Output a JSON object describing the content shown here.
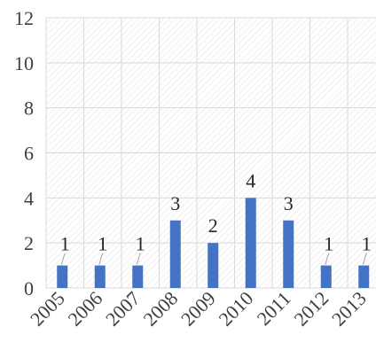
{
  "chart_data": {
    "type": "bar",
    "title": "",
    "xlabel": "",
    "ylabel": "",
    "categories": [
      "2005",
      "2006",
      "2007",
      "2008",
      "2009",
      "2010",
      "2011",
      "2012",
      "2013"
    ],
    "values": [
      1,
      1,
      1,
      3,
      2,
      4,
      3,
      1,
      1
    ],
    "ylim": [
      0,
      12
    ],
    "yticks": [
      0,
      2,
      4,
      6,
      8,
      10,
      12
    ],
    "grid": true,
    "legend": "none",
    "data_labels": true
  },
  "colors": {
    "bar": "#4472c4",
    "gridline": "#d9d9d9",
    "plot_hatch": "#e6e6e6",
    "text": "#404040"
  }
}
